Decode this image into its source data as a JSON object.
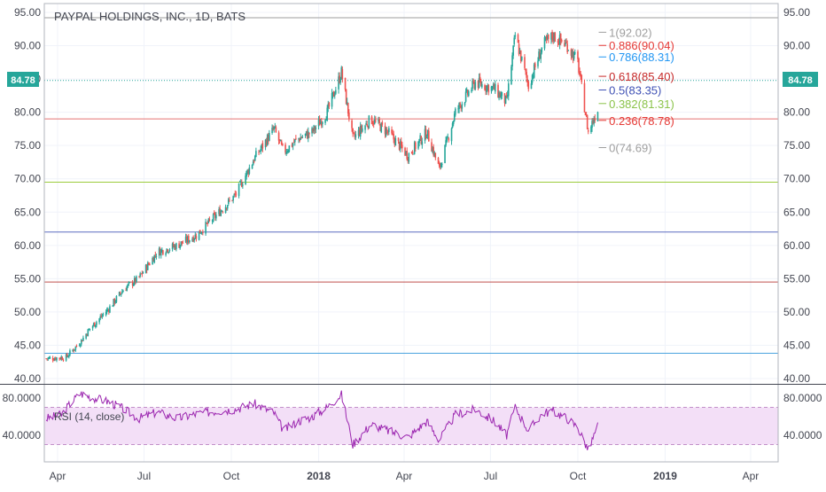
{
  "header": {
    "title": "PAYPAL HOLDINGS, INC., 1D, BATS"
  },
  "price_badge": {
    "value": "84.78",
    "color": "#26a69a"
  },
  "colors": {
    "up": "#26a69a",
    "down": "#ef5350",
    "rsi": "#9c27b0",
    "rsi_band": "#f3dff7"
  },
  "chart_data": [
    {
      "type": "candlestick",
      "title": "PAYPAL HOLDINGS, INC., 1D, BATS",
      "ylim": [
        40,
        95
      ],
      "y_ticks": [
        "95.00",
        "90.00",
        "85.00",
        "80.00",
        "75.00",
        "70.00",
        "65.00",
        "60.00",
        "55.00",
        "50.00",
        "45.00",
        "40.00"
      ],
      "x_ticks": [
        "Apr",
        "Jul",
        "Oct",
        "2018",
        "Apr",
        "Jul",
        "Oct",
        "2019",
        "Apr"
      ],
      "last_price": 84.78,
      "close_path": [
        [
          "2017-03-20",
          43.0
        ],
        [
          "2017-04-10",
          43.2
        ],
        [
          "2017-04-25",
          45.5
        ],
        [
          "2017-05-05",
          47.5
        ],
        [
          "2017-05-25",
          50.5
        ],
        [
          "2017-06-10",
          53.5
        ],
        [
          "2017-06-25",
          55.0
        ],
        [
          "2017-07-15",
          59.0
        ],
        [
          "2017-08-05",
          60.0
        ],
        [
          "2017-08-25",
          61.5
        ],
        [
          "2017-09-15",
          64.5
        ],
        [
          "2017-10-05",
          67.5
        ],
        [
          "2017-10-25",
          73.0
        ],
        [
          "2017-11-15",
          77.5
        ],
        [
          "2017-11-25",
          74.0
        ],
        [
          "2017-12-10",
          76.0
        ],
        [
          "2017-12-25",
          77.0
        ],
        [
          "2018-01-10",
          80.0
        ],
        [
          "2018-01-25",
          86.0
        ],
        [
          "2018-02-06",
          76.0
        ],
        [
          "2018-02-25",
          79.0
        ],
        [
          "2018-03-15",
          77.0
        ],
        [
          "2018-04-05",
          73.5
        ],
        [
          "2018-04-25",
          77.0
        ],
        [
          "2018-05-08",
          71.5
        ],
        [
          "2018-05-25",
          80.0
        ],
        [
          "2018-06-15",
          84.5
        ],
        [
          "2018-07-05",
          83.5
        ],
        [
          "2018-07-18",
          81.5
        ],
        [
          "2018-07-27",
          91.5
        ],
        [
          "2018-08-10",
          84.0
        ],
        [
          "2018-08-25",
          90.0
        ],
        [
          "2018-09-05",
          91.5
        ],
        [
          "2018-09-20",
          90.0
        ],
        [
          "2018-10-01",
          87.5
        ],
        [
          "2018-10-12",
          77.0
        ],
        [
          "2018-10-22",
          80.5
        ]
      ],
      "horizontal_lines": [
        {
          "value": 94.2,
          "color": "#9e9e9e"
        },
        {
          "value": 84.78,
          "color": "#26a69a",
          "style": "dotted"
        },
        {
          "value": 79.0,
          "color": "#e57373"
        },
        {
          "value": 69.5,
          "color": "#9ccc3c"
        },
        {
          "value": 62.0,
          "color": "#5c6bc0"
        },
        {
          "value": 54.5,
          "color": "#c0504d"
        },
        {
          "value": 43.8,
          "color": "#4aa3df"
        }
      ],
      "fibonacci": {
        "date_start": "2018-10-23",
        "date_end": "2018-10-31",
        "levels": [
          {
            "label": "1(92.02)",
            "value": 92.02,
            "color": "#9e9e9e"
          },
          {
            "label": "0.886(90.04)",
            "value": 90.04,
            "color": "#e53935"
          },
          {
            "label": "0.786(88.31)",
            "value": 88.31,
            "color": "#2196f3"
          },
          {
            "label": "0.618(85.40)",
            "value": 85.4,
            "color": "#c62828"
          },
          {
            "label": "0.5(83.35)",
            "value": 83.35,
            "color": "#3f51b5"
          },
          {
            "label": "0.382(81.31)",
            "value": 81.31,
            "color": "#8bc34a"
          },
          {
            "label": "0.236(78.78)",
            "value": 78.78,
            "color": "#e53935"
          },
          {
            "label": "0(74.69)",
            "value": 74.69,
            "color": "#9e9e9e"
          }
        ]
      }
    },
    {
      "type": "line",
      "title": "RSI (14, close)",
      "ylim": [
        20,
        90
      ],
      "y_ticks": [
        "80.0000",
        "40.0000"
      ],
      "band": [
        30,
        70
      ],
      "path": [
        [
          "2017-03-20",
          58
        ],
        [
          "2017-04-05",
          62
        ],
        [
          "2017-04-15",
          75
        ],
        [
          "2017-04-25",
          85
        ],
        [
          "2017-05-10",
          80
        ],
        [
          "2017-05-25",
          76
        ],
        [
          "2017-06-10",
          68
        ],
        [
          "2017-06-25",
          58
        ],
        [
          "2017-07-15",
          65
        ],
        [
          "2017-08-05",
          58
        ],
        [
          "2017-08-25",
          63
        ],
        [
          "2017-09-15",
          66
        ],
        [
          "2017-10-05",
          68
        ],
        [
          "2017-10-25",
          74
        ],
        [
          "2017-11-15",
          64
        ],
        [
          "2017-11-25",
          45
        ],
        [
          "2017-12-10",
          55
        ],
        [
          "2017-12-25",
          60
        ],
        [
          "2018-01-10",
          70
        ],
        [
          "2018-01-25",
          84
        ],
        [
          "2018-02-06",
          30
        ],
        [
          "2018-02-25",
          52
        ],
        [
          "2018-03-15",
          45
        ],
        [
          "2018-04-05",
          38
        ],
        [
          "2018-04-25",
          55
        ],
        [
          "2018-05-08",
          35
        ],
        [
          "2018-05-25",
          62
        ],
        [
          "2018-06-15",
          68
        ],
        [
          "2018-07-05",
          55
        ],
        [
          "2018-07-18",
          40
        ],
        [
          "2018-07-27",
          70
        ],
        [
          "2018-08-10",
          45
        ],
        [
          "2018-08-25",
          64
        ],
        [
          "2018-09-05",
          66
        ],
        [
          "2018-09-20",
          58
        ],
        [
          "2018-10-01",
          48
        ],
        [
          "2018-10-12",
          24
        ],
        [
          "2018-10-22",
          50
        ]
      ]
    }
  ]
}
